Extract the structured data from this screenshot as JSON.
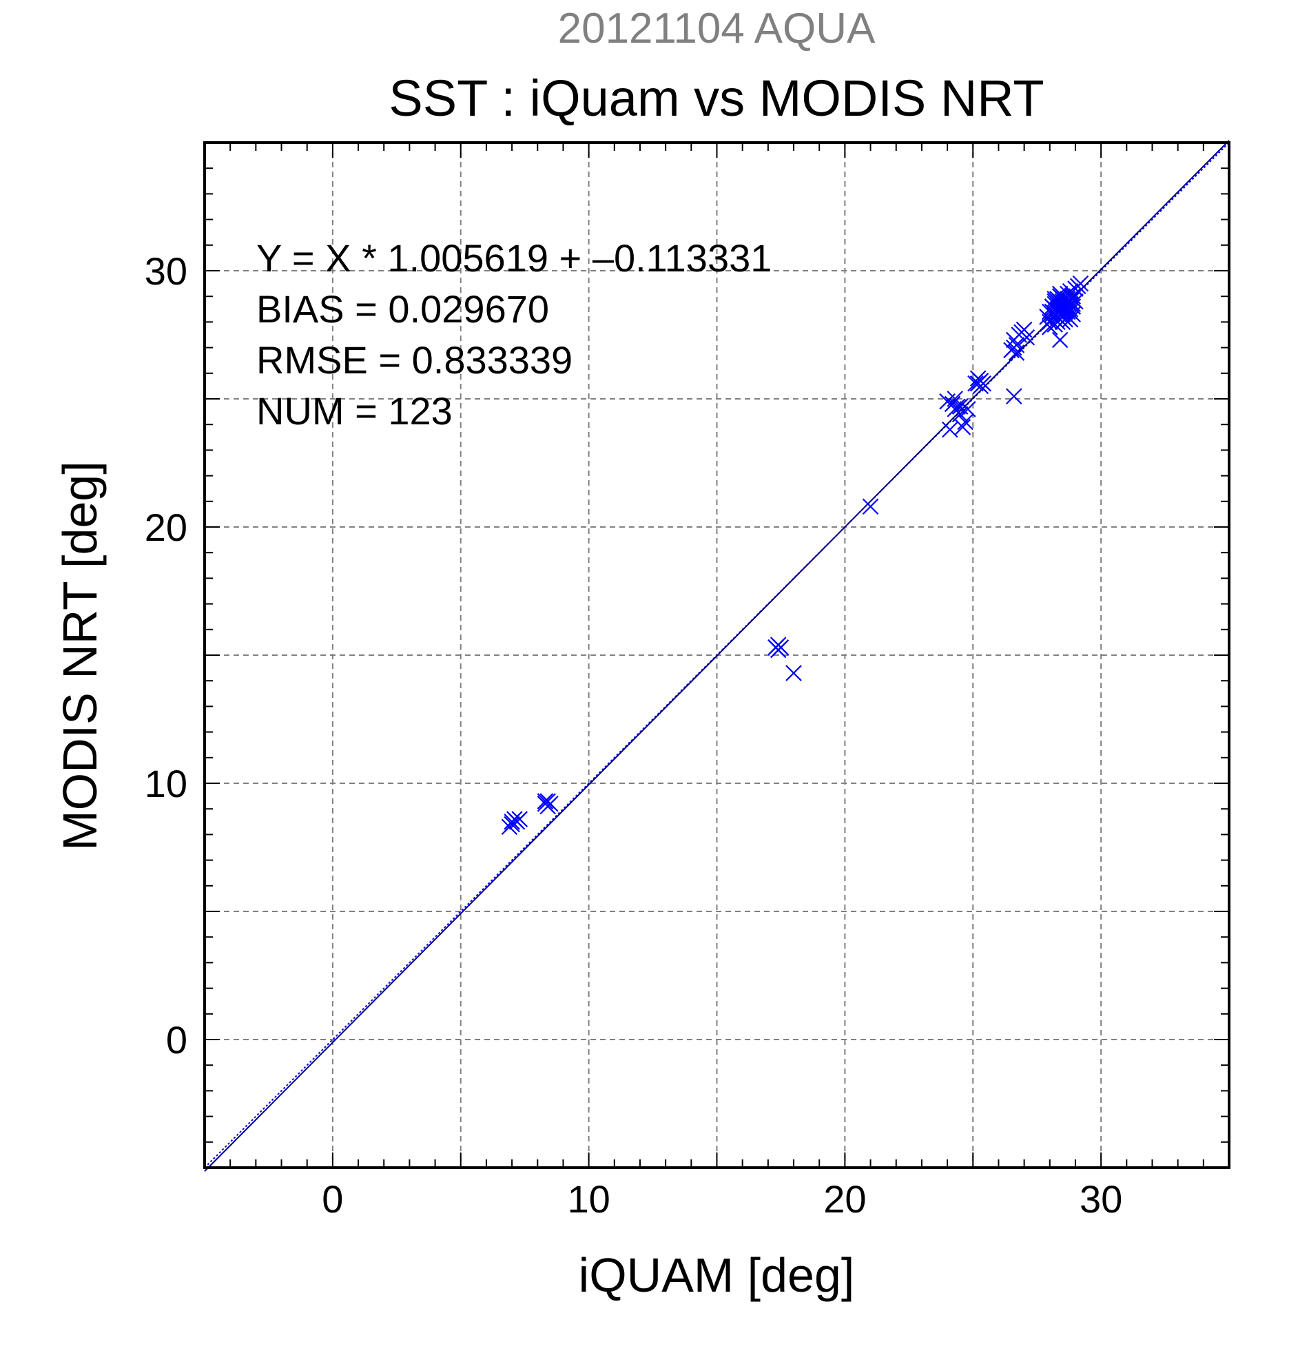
{
  "chart_data": {
    "type": "scatter",
    "supertitle": "20121104 AQUA",
    "title": "SST : iQuam vs MODIS NRT",
    "xlabel": "iQUAM [deg]",
    "ylabel": "MODIS NRT [deg]",
    "xlim": [
      -5,
      35
    ],
    "ylim": [
      -5,
      35
    ],
    "xticks": [
      0,
      10,
      20,
      30
    ],
    "yticks": [
      0,
      10,
      20,
      30
    ],
    "grid": true,
    "stats": [
      "Y = X * 1.005619 + –0.113331",
      "BIAS = 0.029670",
      "RMSE = 0.833339",
      "NUM = 123"
    ],
    "fit": {
      "slope": 1.005619,
      "intercept": -0.113331
    },
    "colors": {
      "marker": "#0000ff",
      "fit_line": "#000080",
      "identity_line": "#0000ff",
      "supertitle": "#808080"
    },
    "marker": "x",
    "series": [
      {
        "x": [
          6.9,
          7.0,
          7.0,
          7.1,
          7.2,
          7.3,
          8.3,
          8.4,
          8.4,
          8.5,
          8.3,
          17.3,
          17.4,
          17.5,
          17.4,
          17.3,
          18.0,
          21.0,
          24.0,
          24.1,
          24.2,
          24.3,
          24.3,
          24.5,
          24.5,
          24.6,
          24.7,
          24.0,
          24.4,
          24.8,
          25.2,
          25.3,
          25.2,
          25.3,
          25.1,
          25.4,
          26.5,
          26.6,
          26.7,
          26.6,
          26.7,
          26.8,
          26.9,
          27.0,
          27.1,
          26.6,
          27.9,
          28.0,
          28.0,
          28.1,
          28.1,
          28.2,
          28.2,
          28.3,
          28.3,
          28.3,
          28.4,
          28.4,
          28.4,
          28.5,
          28.5,
          28.5,
          28.6,
          28.6,
          28.6,
          28.7,
          28.7,
          28.7,
          28.8,
          28.8,
          28.8,
          28.9,
          28.9,
          29.0,
          29.0,
          29.1,
          29.2,
          28.2,
          28.4,
          28.5,
          28.6,
          28.7,
          28.9,
          28.0,
          28.3,
          28.8,
          28.1,
          28.5,
          28.6,
          28.3,
          28.7,
          28.4,
          28.2,
          28.9,
          28.4,
          28.6,
          28.8,
          28.5,
          28.1,
          28.3,
          28.6,
          28.7,
          28.5,
          28.4,
          28.8,
          28.2,
          28.9,
          28.6,
          28.5,
          28.3,
          28.7,
          28.4,
          28.6,
          28.8,
          28.5,
          28.9,
          28.3,
          28.6,
          28.7,
          28.4,
          28.6,
          28.5,
          28.5
        ],
        "y": [
          8.3,
          8.4,
          8.5,
          8.6,
          8.5,
          8.6,
          9.2,
          9.3,
          9.1,
          9.2,
          9.3,
          15.3,
          15.4,
          15.3,
          15.2,
          15.3,
          14.3,
          20.8,
          24.9,
          23.8,
          24.8,
          24.6,
          25.0,
          24.4,
          24.7,
          23.9,
          24.1,
          24.9,
          24.7,
          24.6,
          25.6,
          25.7,
          25.8,
          25.5,
          25.6,
          25.6,
          26.9,
          27.0,
          27.1,
          27.3,
          26.8,
          27.5,
          27.6,
          27.7,
          27.4,
          25.1,
          28.2,
          28.4,
          28.0,
          28.3,
          28.6,
          28.5,
          28.8,
          28.2,
          28.6,
          28.9,
          28.1,
          28.7,
          29.1,
          28.4,
          28.8,
          29.0,
          28.3,
          28.6,
          28.9,
          28.5,
          28.8,
          29.1,
          28.4,
          28.7,
          29.2,
          28.6,
          29.0,
          28.8,
          29.3,
          29.4,
          29.5,
          27.9,
          27.3,
          28.0,
          28.1,
          28.2,
          28.3,
          27.8,
          28.0,
          28.1,
          28.4,
          28.5,
          28.4,
          28.7,
          28.6,
          28.3,
          28.9,
          28.9,
          29.0,
          28.7,
          28.5,
          28.9,
          28.6,
          28.4,
          28.5,
          28.9,
          28.6,
          28.8,
          28.7,
          28.7,
          28.6,
          28.8,
          28.7,
          28.5,
          28.6,
          28.5,
          28.7,
          28.8,
          28.3,
          28.7,
          28.8,
          28.4,
          28.4,
          28.6,
          28.5,
          28.6,
          28.8
        ]
      }
    ]
  }
}
